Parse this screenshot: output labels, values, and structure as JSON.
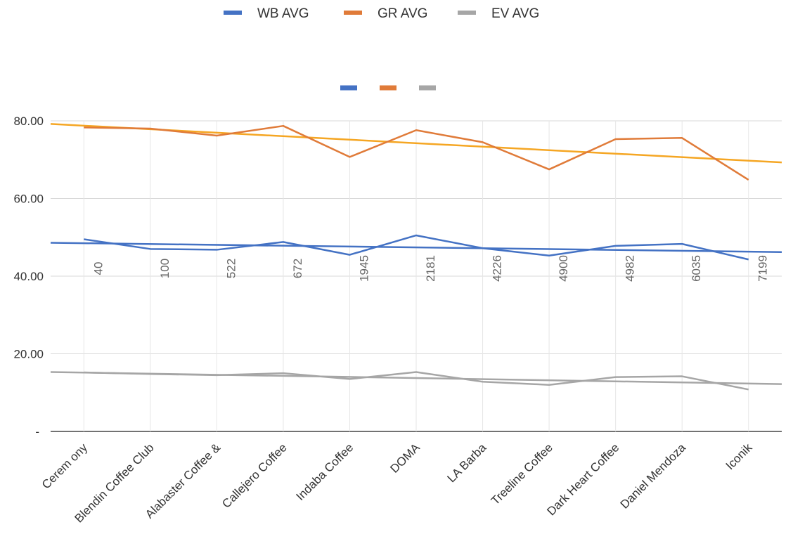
{
  "chart_data": {
    "type": "line",
    "categories": [
      "Cerem ony",
      "Blendin Coffee Club",
      "Alabaster Coffee &",
      "Callejero Coffee",
      "Indaba Coffee",
      "DOMA",
      "LA Barba",
      "Treeline Coffee",
      "Dark Heart Coffee",
      "Daniel Mendoza",
      "Iconik"
    ],
    "point_labels": [
      "40",
      "100",
      "522",
      "672",
      "1945",
      "2181",
      "4226",
      "4900",
      "4982",
      "6035",
      "7199"
    ],
    "series": [
      {
        "name": "WB AVG",
        "color": "#4472c4",
        "values": [
          49.5,
          47.0,
          46.8,
          48.8,
          45.5,
          50.5,
          47.2,
          45.3,
          47.8,
          48.3,
          44.3
        ]
      },
      {
        "name": "GR AVG",
        "color": "#e07b39",
        "values": [
          78.3,
          78.0,
          76.2,
          78.7,
          70.7,
          77.6,
          74.5,
          67.5,
          75.3,
          75.6,
          64.8
        ]
      },
      {
        "name": "EV AVG",
        "color": "#a6a6a6",
        "values": [
          15.2,
          14.8,
          14.5,
          15.0,
          13.5,
          15.3,
          12.8,
          12.0,
          14.0,
          14.2,
          10.8
        ]
      }
    ],
    "trendlines": [
      {
        "series": "WB AVG",
        "color": "#4472c4",
        "start": 48.6,
        "end": 46.2
      },
      {
        "series": "GR AVG",
        "color": "#f5a623",
        "start": 79.2,
        "end": 69.3
      },
      {
        "series": "EV AVG",
        "color": "#a6a6a6",
        "start": 15.3,
        "end": 12.2
      }
    ],
    "yticks": [
      "-",
      "20.00",
      "40.00",
      "60.00",
      "80.00"
    ],
    "ylim": [
      0,
      80
    ],
    "grid": true,
    "legend": "top"
  }
}
